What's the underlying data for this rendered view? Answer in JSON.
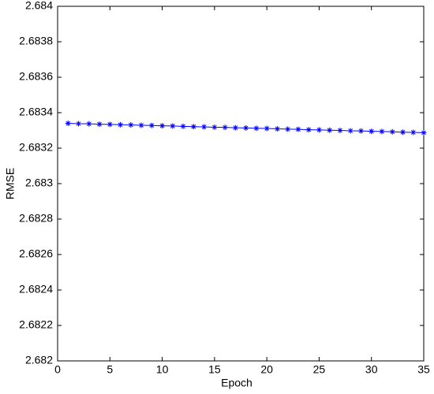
{
  "chart_data": {
    "type": "line",
    "x_label": "Epoch",
    "y_label": "RMSE",
    "x": [
      1,
      2,
      3,
      4,
      5,
      6,
      7,
      8,
      9,
      10,
      11,
      12,
      13,
      14,
      15,
      16,
      17,
      18,
      19,
      20,
      21,
      22,
      23,
      24,
      25,
      26,
      27,
      28,
      29,
      30,
      31,
      32,
      33,
      34,
      35
    ],
    "series": [
      {
        "color": "#0000ff",
        "marker": "asterisk",
        "values": [
          2.68334,
          2.683338,
          2.683337,
          2.683335,
          2.683334,
          2.683332,
          2.683331,
          2.683329,
          2.683328,
          2.683326,
          2.683325,
          2.683323,
          2.683321,
          2.68332,
          2.683318,
          2.683317,
          2.683315,
          2.683314,
          2.683312,
          2.683311,
          2.683309,
          2.683307,
          2.683306,
          2.683304,
          2.683303,
          2.683301,
          2.6833,
          2.683298,
          2.683297,
          2.683295,
          2.683294,
          2.683292,
          2.68329,
          2.683289,
          2.683287
        ]
      }
    ],
    "xlim": [
      0,
      35
    ],
    "xticks": [
      0,
      5,
      10,
      15,
      20,
      25,
      30,
      35
    ],
    "ylim": [
      2.682,
      2.684
    ],
    "yticks": [
      2.682,
      2.6822,
      2.6824,
      2.6826,
      2.6828,
      2.683,
      2.6832,
      2.6834,
      2.6836,
      2.6838,
      2.684
    ],
    "grid": false
  }
}
